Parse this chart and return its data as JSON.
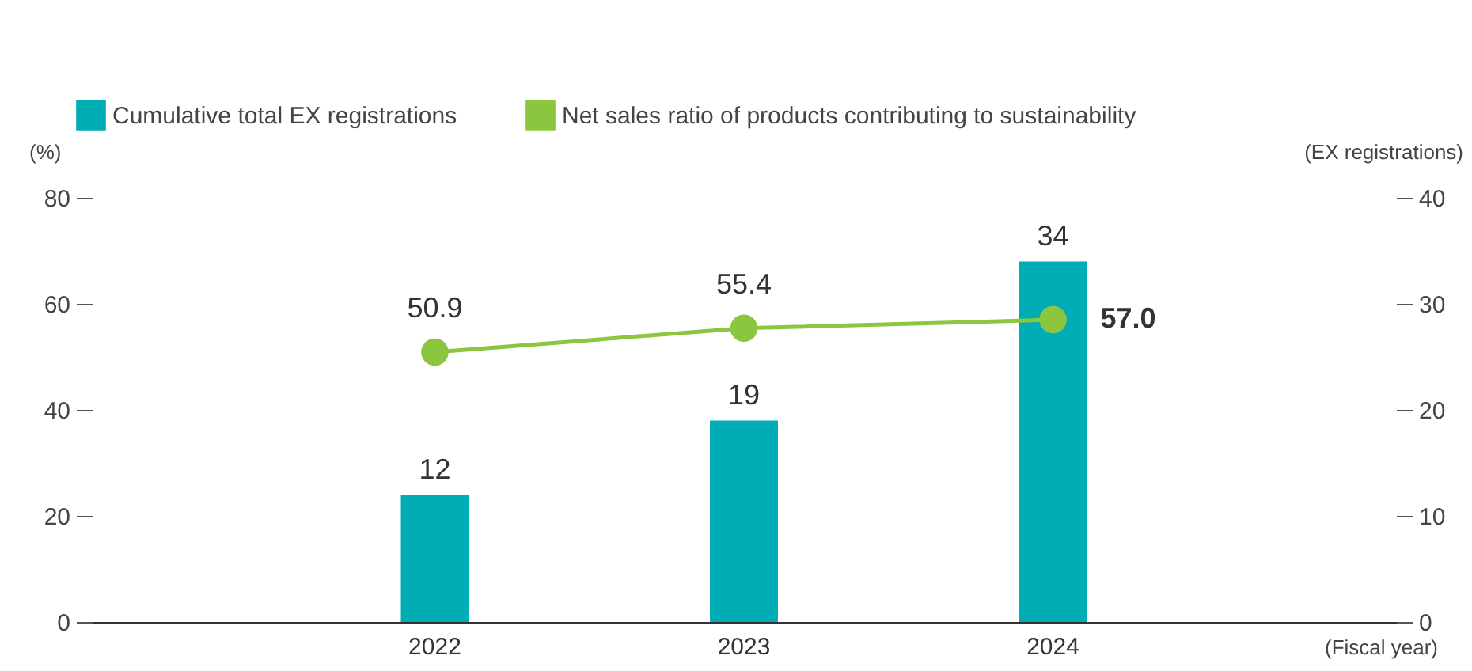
{
  "chart_data": {
    "type": "bar",
    "categories": [
      "2022",
      "2023",
      "2024"
    ],
    "xlabel": "(Fiscal year)",
    "ylabel": "(%)",
    "y2label": "(EX registrations)",
    "ylim": [
      0,
      80
    ],
    "yticks": [
      0,
      20,
      40,
      60,
      80
    ],
    "y2lim": [
      0,
      40
    ],
    "y2ticks": [
      0,
      10,
      20,
      30,
      40
    ],
    "legend": "top left",
    "marker": "circle",
    "series": [
      {
        "name": "Cumulative total EX registrations",
        "axis": "y2",
        "color": "#00adb5",
        "values": [
          12,
          19,
          34
        ],
        "value_labels": [
          "12",
          "19",
          "34"
        ]
      },
      {
        "name": "Net sales ratio of products contributing to sustainability",
        "type": "line",
        "color": "#8cc63f",
        "values": [
          50.9,
          55.4,
          57.0
        ],
        "value_labels": [
          "50.9",
          "55.4",
          "57.0"
        ]
      }
    ]
  }
}
